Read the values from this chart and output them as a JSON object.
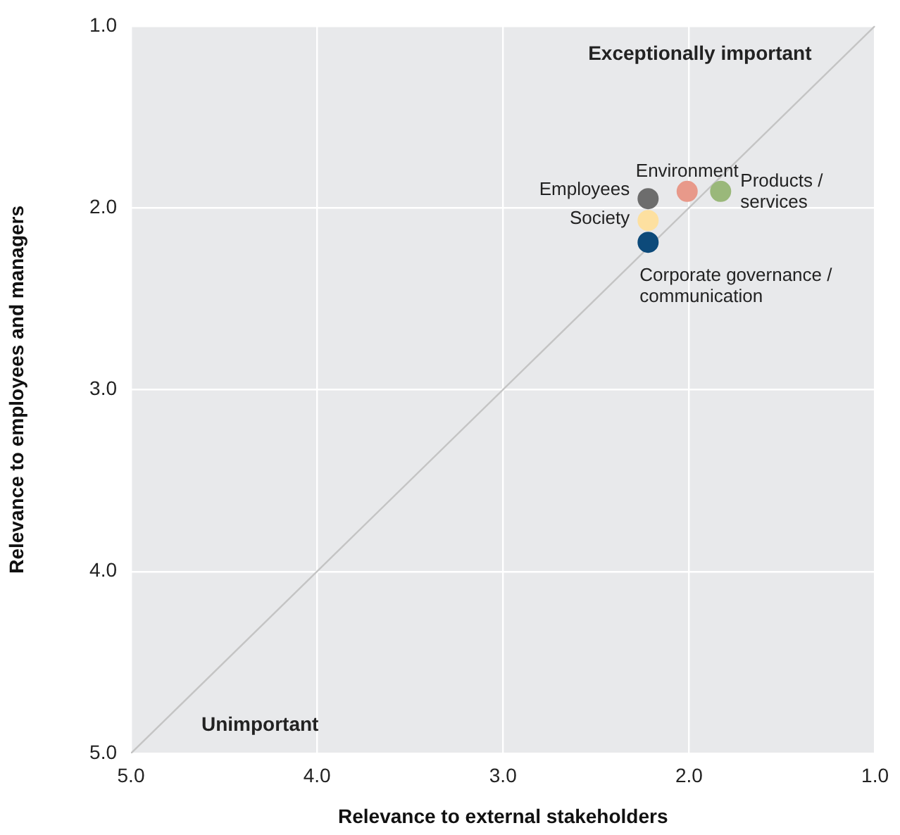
{
  "chart_data": {
    "type": "scatter",
    "xlabel": "Relevance to external stakeholders",
    "ylabel": "Relevance to employees and managers",
    "xlim": [
      5,
      1
    ],
    "ylim": [
      5,
      1
    ],
    "xticks": [
      {
        "value": 5,
        "label": "5.0"
      },
      {
        "value": 4,
        "label": "4.0"
      },
      {
        "value": 3,
        "label": "3.0"
      },
      {
        "value": 2,
        "label": "2.0"
      },
      {
        "value": 1,
        "label": "1.0"
      }
    ],
    "yticks": [
      {
        "value": 5,
        "label": "5.0"
      },
      {
        "value": 4,
        "label": "4.0"
      },
      {
        "value": 3,
        "label": "3.0"
      },
      {
        "value": 2,
        "label": "2.0"
      },
      {
        "value": 1,
        "label": "1.0"
      }
    ],
    "grid": true,
    "legend": false,
    "marker": "circle",
    "annotations": [
      "Exceptionally important",
      "Unimportant"
    ],
    "series": [
      {
        "type": "line",
        "marker": "none",
        "color": "#c4c4c4",
        "x": [
          5,
          1
        ],
        "values": [
          5,
          1
        ]
      },
      {
        "name": "Environment",
        "color": "#e8998a",
        "x": [
          2.01
        ],
        "values": [
          1.91
        ]
      },
      {
        "name": "Products / services",
        "color": "#9ab87a",
        "x": [
          1.83
        ],
        "values": [
          1.91
        ]
      },
      {
        "name": "Employees",
        "color": "#6d6d6d",
        "x": [
          2.22
        ],
        "values": [
          1.95
        ]
      },
      {
        "name": "Society",
        "color": "#fde0a0",
        "x": [
          2.22
        ],
        "values": [
          2.07
        ]
      },
      {
        "name": "Corporate governance / communication",
        "color": "#0d4a7a",
        "x": [
          2.22
        ],
        "values": [
          2.19
        ]
      }
    ]
  }
}
